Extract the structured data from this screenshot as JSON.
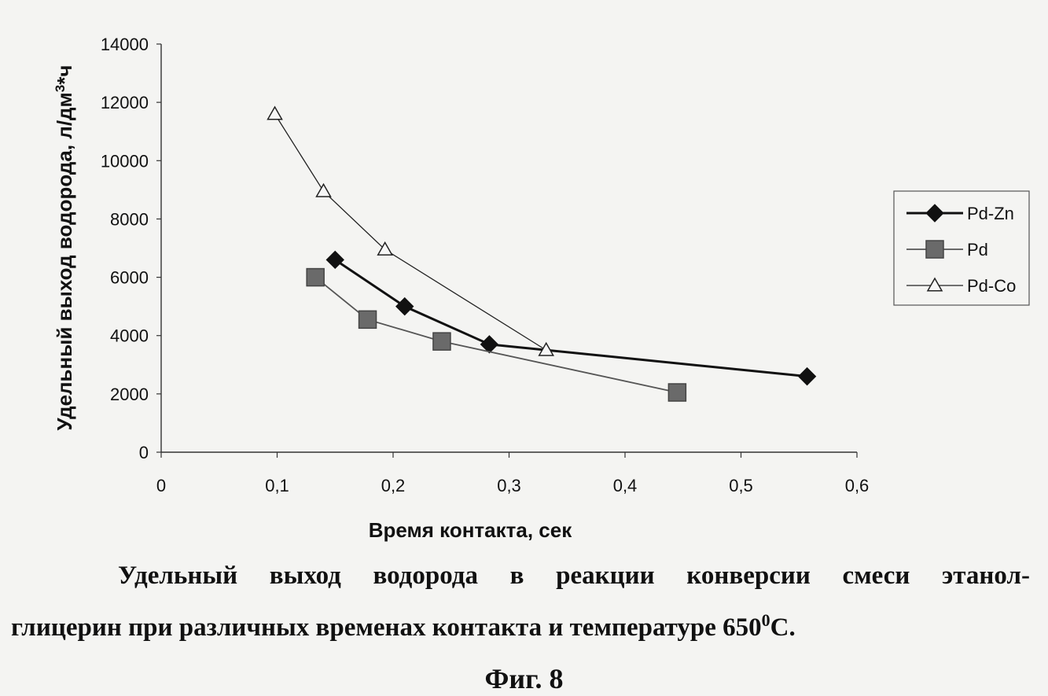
{
  "chart_data": {
    "type": "line",
    "xlabel": "Время контакта, сек",
    "ylabel": "Удельный выход водорода, л/дм",
    "ylabel_sup": "3",
    "ylabel_tail": "*ч",
    "xlim": [
      0,
      0.6
    ],
    "ylim": [
      0,
      14000
    ],
    "x_ticks": [
      "0",
      "0,1",
      "0,2",
      "0,3",
      "0,4",
      "0,5",
      "0,6"
    ],
    "x_tick_values": [
      0,
      0.1,
      0.2,
      0.3,
      0.4,
      0.5,
      0.6
    ],
    "y_ticks": [
      "0",
      "2000",
      "4000",
      "6000",
      "8000",
      "10000",
      "12000",
      "14000"
    ],
    "y_tick_values": [
      0,
      2000,
      4000,
      6000,
      8000,
      10000,
      12000,
      14000
    ],
    "grid": false,
    "legend_position": "right",
    "series": [
      {
        "name": "Pd-Zn",
        "marker": "diamond",
        "color": "#111111",
        "points": [
          [
            0.15,
            6600
          ],
          [
            0.21,
            5000
          ],
          [
            0.283,
            3700
          ],
          [
            0.557,
            2600
          ]
        ]
      },
      {
        "name": "Pd",
        "marker": "square",
        "color": "#555555",
        "points": [
          [
            0.133,
            6000
          ],
          [
            0.178,
            4550
          ],
          [
            0.242,
            3800
          ],
          [
            0.445,
            2050
          ]
        ]
      },
      {
        "name": "Pd-Co",
        "marker": "triangle",
        "color": "#222222",
        "points": [
          [
            0.098,
            11600
          ],
          [
            0.14,
            8950
          ],
          [
            0.193,
            6950
          ],
          [
            0.332,
            3500
          ]
        ]
      }
    ]
  },
  "caption": {
    "line1": "Удельный выход водорода в реакции конверсии смеси этанол-",
    "line2_pre": "глицерин при различных временах контакта и температуре 650",
    "line2_sup": "0",
    "line2_post": "С.",
    "figure_label": "Фиг. 8"
  }
}
